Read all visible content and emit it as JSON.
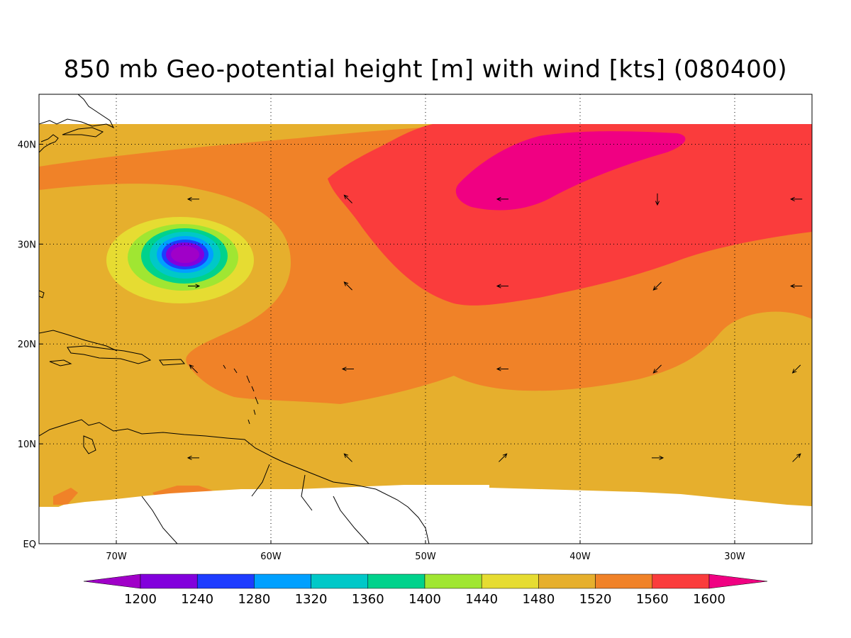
{
  "title": "850 mb Geo-potential height [m] with wind [kts] (080400)",
  "map": {
    "lon_range": [
      -75,
      -25
    ],
    "lat_range": [
      0,
      45
    ],
    "lon_ticks": [
      {
        "value": -70,
        "label": "70W"
      },
      {
        "value": -60,
        "label": "60W"
      },
      {
        "value": -50,
        "label": "50W"
      },
      {
        "value": -40,
        "label": "40W"
      },
      {
        "value": -30,
        "label": "30W"
      }
    ],
    "lat_ticks": [
      {
        "value": 0,
        "label": "EQ"
      },
      {
        "value": 10,
        "label": "10N"
      },
      {
        "value": 20,
        "label": "20N"
      },
      {
        "value": 30,
        "label": "30N"
      },
      {
        "value": 40,
        "label": "40N"
      }
    ],
    "grid": "dotted",
    "data_lat_range": [
      4,
      42
    ]
  },
  "colorbar": {
    "labels": [
      "1200",
      "1240",
      "1280",
      "1320",
      "1360",
      "1400",
      "1440",
      "1480",
      "1520",
      "1560",
      "1600"
    ],
    "colors": [
      "#a000c8",
      "#8200dc",
      "#1e3cff",
      "#00a0ff",
      "#00c8c8",
      "#00d28c",
      "#a0e632",
      "#e6dc32",
      "#e6af2d",
      "#f08228",
      "#fa3c3c",
      "#f00082"
    ]
  },
  "wind_vectors": [
    {
      "lon": -65,
      "lat": 34.5,
      "dir": "W"
    },
    {
      "lon": -55,
      "lat": 34.5,
      "dir": "NW"
    },
    {
      "lon": -45,
      "lat": 34.5,
      "dir": "W"
    },
    {
      "lon": -35,
      "lat": 34.5,
      "dir": "S"
    },
    {
      "lon": -26,
      "lat": 34.5,
      "dir": "W"
    },
    {
      "lon": -65,
      "lat": 25.8,
      "dir": "E"
    },
    {
      "lon": -55,
      "lat": 25.8,
      "dir": "NW"
    },
    {
      "lon": -45,
      "lat": 25.8,
      "dir": "W"
    },
    {
      "lon": -35,
      "lat": 25.8,
      "dir": "SW"
    },
    {
      "lon": -26,
      "lat": 25.8,
      "dir": "W"
    },
    {
      "lon": -65,
      "lat": 17.5,
      "dir": "NW"
    },
    {
      "lon": -55,
      "lat": 17.5,
      "dir": "W"
    },
    {
      "lon": -45,
      "lat": 17.5,
      "dir": "W"
    },
    {
      "lon": -35,
      "lat": 17.5,
      "dir": "SW"
    },
    {
      "lon": -26,
      "lat": 17.5,
      "dir": "SW"
    },
    {
      "lon": -65,
      "lat": 8.6,
      "dir": "W"
    },
    {
      "lon": -55,
      "lat": 8.6,
      "dir": "NW"
    },
    {
      "lon": -45,
      "lat": 8.6,
      "dir": "NE"
    },
    {
      "lon": -35,
      "lat": 8.6,
      "dir": "E"
    },
    {
      "lon": -26,
      "lat": 8.6,
      "dir": "NE"
    }
  ],
  "colors": {
    "background": "#ffffff",
    "land_outline": "#000000"
  }
}
